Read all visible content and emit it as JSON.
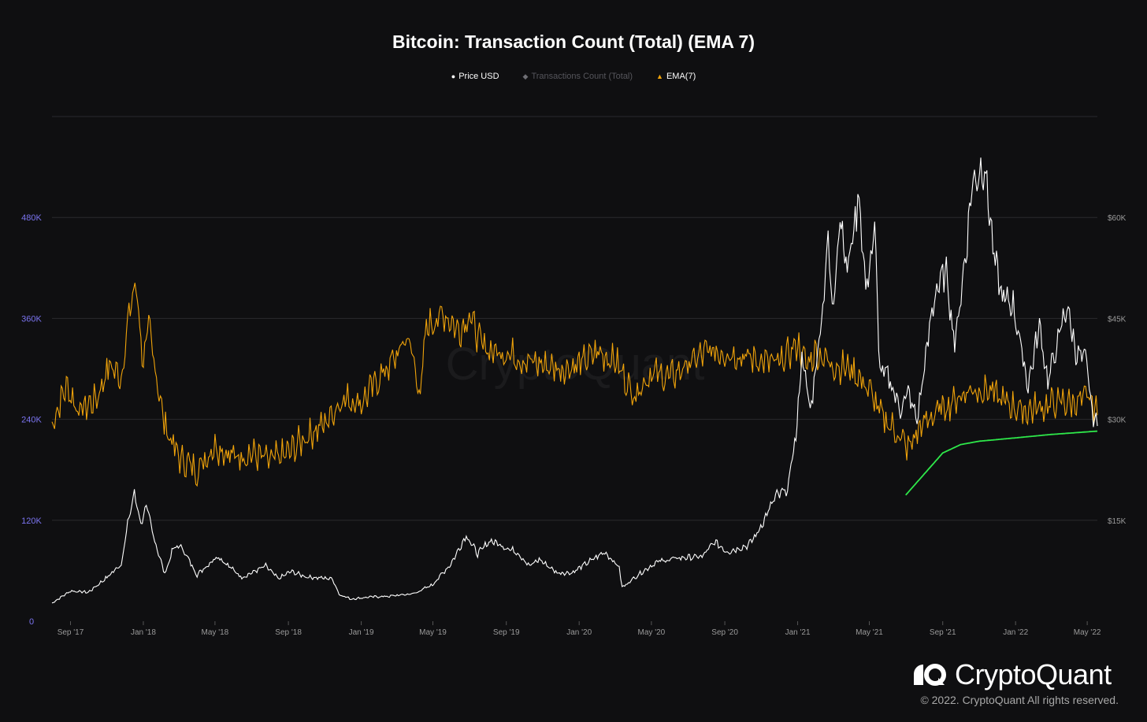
{
  "colors": {
    "background": "#0f0f11",
    "grid": "#2a2a2e",
    "left_axis_text": "#7b74f0",
    "right_axis_text": "#9a9a9a",
    "price": "#ffffff",
    "tx_count": "#6e6e74",
    "ema": "#f0a30a",
    "trend": "#2ee84a"
  },
  "brand": {
    "name": "CryptoQuant",
    "copyright": "© 2022. CryptoQuant All rights reserved.",
    "logo_icon": "cryptoquant-logo-icon"
  },
  "chart_data": {
    "type": "line",
    "title": "Bitcoin: Transaction Count (Total) (EMA 7)",
    "legend": [
      {
        "name": "Price USD",
        "marker": "circle",
        "color": "#ffffff"
      },
      {
        "name": "Transactions Count (Total)",
        "marker": "diamond",
        "color": "#6e6e74"
      },
      {
        "name": "EMA(7)",
        "marker": "triangle",
        "color": "#f0a30a"
      }
    ],
    "x_range": [
      "2017-08-01",
      "2022-05-18"
    ],
    "x_ticks": [
      {
        "date": "2017-09-01",
        "label": "Sep '17"
      },
      {
        "date": "2018-01-01",
        "label": "Jan '18"
      },
      {
        "date": "2018-05-01",
        "label": "May '18"
      },
      {
        "date": "2018-09-01",
        "label": "Sep '18"
      },
      {
        "date": "2019-01-01",
        "label": "Jan '19"
      },
      {
        "date": "2019-05-01",
        "label": "May '19"
      },
      {
        "date": "2019-09-01",
        "label": "Sep '19"
      },
      {
        "date": "2020-01-01",
        "label": "Jan '20"
      },
      {
        "date": "2020-05-01",
        "label": "May '20"
      },
      {
        "date": "2020-09-01",
        "label": "Sep '20"
      },
      {
        "date": "2021-01-01",
        "label": "Jan '21"
      },
      {
        "date": "2021-05-01",
        "label": "May '21"
      },
      {
        "date": "2021-09-01",
        "label": "Sep '21"
      },
      {
        "date": "2022-01-01",
        "label": "Jan '22"
      },
      {
        "date": "2022-05-01",
        "label": "May '22"
      }
    ],
    "y_left": {
      "range": [
        0,
        600000
      ],
      "ticks": [
        0,
        120000,
        240000,
        360000,
        480000
      ],
      "tick_labels": [
        "0",
        "120K",
        "240K",
        "360K",
        "480K"
      ]
    },
    "y_right": {
      "range": [
        0,
        75000
      ],
      "ticks": [
        15000,
        30000,
        45000,
        60000
      ],
      "tick_labels": [
        "$15K",
        "$30K",
        "$45K",
        "$60K"
      ]
    },
    "grid": true,
    "legend_position": "top-center",
    "series": [
      {
        "name": "Price USD",
        "axis": "right",
        "points": [
          [
            "2017-08-01",
            2700
          ],
          [
            "2017-09-01",
            4500
          ],
          [
            "2017-10-01",
            4300
          ],
          [
            "2017-11-01",
            6500
          ],
          [
            "2017-11-25",
            8500
          ],
          [
            "2017-12-08",
            15500
          ],
          [
            "2017-12-17",
            19000
          ],
          [
            "2017-12-28",
            14500
          ],
          [
            "2018-01-06",
            17000
          ],
          [
            "2018-01-20",
            12000
          ],
          [
            "2018-02-06",
            7000
          ],
          [
            "2018-02-20",
            10800
          ],
          [
            "2018-03-05",
            11200
          ],
          [
            "2018-04-01",
            6900
          ],
          [
            "2018-05-05",
            9700
          ],
          [
            "2018-06-15",
            6500
          ],
          [
            "2018-07-25",
            8200
          ],
          [
            "2018-08-15",
            6300
          ],
          [
            "2018-09-05",
            7400
          ],
          [
            "2018-10-01",
            6600
          ],
          [
            "2018-11-14",
            6300
          ],
          [
            "2018-11-25",
            4000
          ],
          [
            "2018-12-15",
            3300
          ],
          [
            "2019-01-15",
            3600
          ],
          [
            "2019-02-15",
            3700
          ],
          [
            "2019-03-30",
            4100
          ],
          [
            "2019-04-30",
            5400
          ],
          [
            "2019-05-31",
            8500
          ],
          [
            "2019-06-26",
            12800
          ],
          [
            "2019-07-15",
            10000
          ],
          [
            "2019-08-05",
            12000
          ],
          [
            "2019-09-20",
            10200
          ],
          [
            "2019-10-10",
            8200
          ],
          [
            "2019-10-26",
            9200
          ],
          [
            "2019-11-25",
            7200
          ],
          [
            "2019-12-20",
            7200
          ],
          [
            "2020-01-15",
            8700
          ],
          [
            "2020-02-13",
            10300
          ],
          [
            "2020-03-08",
            8000
          ],
          [
            "2020-03-13",
            5000
          ],
          [
            "2020-04-10",
            7000
          ],
          [
            "2020-05-10",
            8800
          ],
          [
            "2020-06-15",
            9400
          ],
          [
            "2020-07-25",
            9600
          ],
          [
            "2020-08-15",
            11800
          ],
          [
            "2020-09-05",
            10300
          ],
          [
            "2020-10-10",
            11300
          ],
          [
            "2020-10-25",
            13000
          ],
          [
            "2020-11-25",
            18500
          ],
          [
            "2020-12-15",
            19500
          ],
          [
            "2020-12-31",
            29000
          ],
          [
            "2021-01-08",
            40000
          ],
          [
            "2021-01-22",
            31000
          ],
          [
            "2021-02-10",
            45000
          ],
          [
            "2021-02-21",
            57000
          ],
          [
            "2021-02-28",
            45500
          ],
          [
            "2021-03-13",
            61000
          ],
          [
            "2021-03-25",
            52000
          ],
          [
            "2021-04-14",
            63500
          ],
          [
            "2021-04-25",
            49000
          ],
          [
            "2021-05-10",
            58000
          ],
          [
            "2021-05-19",
            37000
          ],
          [
            "2021-06-01",
            36500
          ],
          [
            "2021-06-22",
            31500
          ],
          [
            "2021-07-05",
            34000
          ],
          [
            "2021-07-20",
            29800
          ],
          [
            "2021-08-14",
            46000
          ],
          [
            "2021-08-20",
            49000
          ],
          [
            "2021-09-07",
            52000
          ],
          [
            "2021-09-21",
            41000
          ],
          [
            "2021-10-10",
            55000
          ],
          [
            "2021-10-20",
            65000
          ],
          [
            "2021-11-10",
            68000
          ],
          [
            "2021-11-26",
            54000
          ],
          [
            "2021-12-10",
            48000
          ],
          [
            "2021-12-28",
            47000
          ],
          [
            "2022-01-22",
            35000
          ],
          [
            "2022-02-10",
            44000
          ],
          [
            "2022-02-24",
            35500
          ],
          [
            "2022-03-28",
            47000
          ],
          [
            "2022-04-12",
            40000
          ],
          [
            "2022-04-30",
            38500
          ],
          [
            "2022-05-09",
            31000
          ],
          [
            "2022-05-18",
            29000
          ]
        ]
      },
      {
        "name": "EMA(7)",
        "axis": "left",
        "points": [
          [
            "2017-08-01",
            235000
          ],
          [
            "2017-08-25",
            280000
          ],
          [
            "2017-09-15",
            250000
          ],
          [
            "2017-10-15",
            265000
          ],
          [
            "2017-11-05",
            305000
          ],
          [
            "2017-11-25",
            290000
          ],
          [
            "2017-12-10",
            375000
          ],
          [
            "2017-12-20",
            400000
          ],
          [
            "2018-01-01",
            305000
          ],
          [
            "2018-01-10",
            350000
          ],
          [
            "2018-02-05",
            235000
          ],
          [
            "2018-03-01",
            195000
          ],
          [
            "2018-04-01",
            180000
          ],
          [
            "2018-05-01",
            210000
          ],
          [
            "2018-06-01",
            195000
          ],
          [
            "2018-07-01",
            200000
          ],
          [
            "2018-08-01",
            190000
          ],
          [
            "2018-09-01",
            200000
          ],
          [
            "2018-10-01",
            220000
          ],
          [
            "2018-11-01",
            235000
          ],
          [
            "2018-12-01",
            265000
          ],
          [
            "2019-01-01",
            260000
          ],
          [
            "2019-02-01",
            290000
          ],
          [
            "2019-03-01",
            315000
          ],
          [
            "2019-03-20",
            340000
          ],
          [
            "2019-04-10",
            270000
          ],
          [
            "2019-04-20",
            350000
          ],
          [
            "2019-05-20",
            365000
          ],
          [
            "2019-06-15",
            345000
          ],
          [
            "2019-07-01",
            365000
          ],
          [
            "2019-07-20",
            330000
          ],
          [
            "2019-08-10",
            320000
          ],
          [
            "2019-09-01",
            320000
          ],
          [
            "2019-10-01",
            310000
          ],
          [
            "2019-11-01",
            305000
          ],
          [
            "2019-12-01",
            300000
          ],
          [
            "2020-01-01",
            305000
          ],
          [
            "2020-02-01",
            320000
          ],
          [
            "2020-03-01",
            310000
          ],
          [
            "2020-04-01",
            270000
          ],
          [
            "2020-05-01",
            295000
          ],
          [
            "2020-06-01",
            290000
          ],
          [
            "2020-07-01",
            305000
          ],
          [
            "2020-08-01",
            320000
          ],
          [
            "2020-09-01",
            320000
          ],
          [
            "2020-10-01",
            315000
          ],
          [
            "2020-11-01",
            310000
          ],
          [
            "2020-12-01",
            305000
          ],
          [
            "2021-01-01",
            330000
          ],
          [
            "2021-01-15",
            305000
          ],
          [
            "2021-02-01",
            320000
          ],
          [
            "2021-03-01",
            305000
          ],
          [
            "2021-04-01",
            300000
          ],
          [
            "2021-05-01",
            275000
          ],
          [
            "2021-05-20",
            245000
          ],
          [
            "2021-06-15",
            225000
          ],
          [
            "2021-07-05",
            205000
          ],
          [
            "2021-07-25",
            230000
          ],
          [
            "2021-08-15",
            245000
          ],
          [
            "2021-09-15",
            260000
          ],
          [
            "2021-10-15",
            275000
          ],
          [
            "2021-11-15",
            275000
          ],
          [
            "2021-12-15",
            260000
          ],
          [
            "2022-01-15",
            250000
          ],
          [
            "2022-02-15",
            255000
          ],
          [
            "2022-03-15",
            260000
          ],
          [
            "2022-04-15",
            260000
          ],
          [
            "2022-05-05",
            265000
          ],
          [
            "2022-05-18",
            245000
          ]
        ]
      },
      {
        "name": "Trend line",
        "axis": "left",
        "points": [
          [
            "2021-07-01",
            150000
          ],
          [
            "2021-08-01",
            175000
          ],
          [
            "2021-09-01",
            200000
          ],
          [
            "2021-10-01",
            210000
          ],
          [
            "2021-11-01",
            214000
          ],
          [
            "2022-01-01",
            218000
          ],
          [
            "2022-03-01",
            222000
          ],
          [
            "2022-05-18",
            226000
          ]
        ]
      }
    ]
  }
}
